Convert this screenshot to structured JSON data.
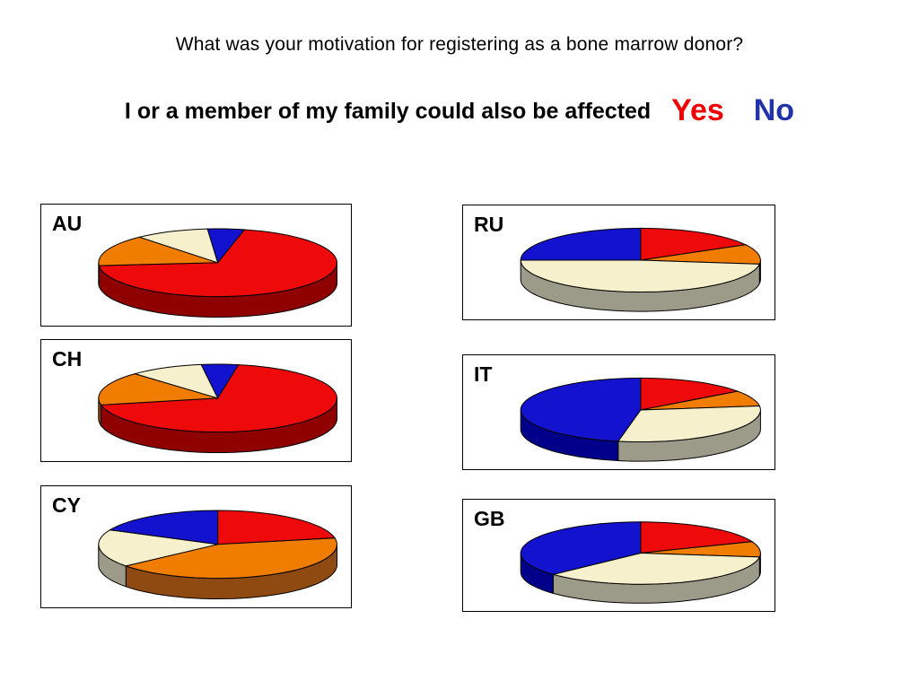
{
  "header": {
    "title": "What was your motivation for registering as a bone marrow donor?",
    "question": "I or a member of my family could also be affected",
    "yes_label": "Yes",
    "no_label": "No"
  },
  "colors": {
    "yes_text": "#ee0000",
    "no_text": "#2233aa",
    "palette": {
      "red": {
        "top": "#ee0a0a",
        "side": "#8f0000"
      },
      "orange": {
        "top": "#f07d00",
        "side": "#8f4a12"
      },
      "cream": {
        "top": "#f7f0cc",
        "side": "#9c9b8a"
      },
      "blue": {
        "top": "#1313cf",
        "side": "#00008b"
      }
    }
  },
  "chart_data": [
    {
      "type": "pie",
      "label": "AU",
      "start_angle": -5,
      "slices": [
        {
          "name": "blue",
          "value": 5
        },
        {
          "name": "red",
          "value": 70
        },
        {
          "name": "orange",
          "value": 15
        },
        {
          "name": "cream",
          "value": 10
        }
      ]
    },
    {
      "type": "pie",
      "label": "CH",
      "start_angle": -8,
      "slices": [
        {
          "name": "blue",
          "value": 5
        },
        {
          "name": "red",
          "value": 69
        },
        {
          "name": "orange",
          "value": 16
        },
        {
          "name": "cream",
          "value": 10
        }
      ]
    },
    {
      "type": "pie",
      "label": "CY",
      "start_angle": 0,
      "slices": [
        {
          "name": "red",
          "value": 22
        },
        {
          "name": "orange",
          "value": 42
        },
        {
          "name": "cream",
          "value": 18
        },
        {
          "name": "blue",
          "value": 18
        }
      ]
    },
    {
      "type": "pie",
      "label": "RU",
      "start_angle": 0,
      "slices": [
        {
          "name": "red",
          "value": 17
        },
        {
          "name": "orange",
          "value": 10
        },
        {
          "name": "cream",
          "value": 48
        },
        {
          "name": "blue",
          "value": 25
        }
      ]
    },
    {
      "type": "pie",
      "label": "IT",
      "start_angle": 0,
      "slices": [
        {
          "name": "red",
          "value": 15
        },
        {
          "name": "orange",
          "value": 8
        },
        {
          "name": "cream",
          "value": 30
        },
        {
          "name": "blue",
          "value": 47
        }
      ]
    },
    {
      "type": "pie",
      "label": "GB",
      "start_angle": 0,
      "slices": [
        {
          "name": "red",
          "value": 19
        },
        {
          "name": "orange",
          "value": 8
        },
        {
          "name": "cream",
          "value": 36
        },
        {
          "name": "blue",
          "value": 37
        }
      ]
    }
  ]
}
